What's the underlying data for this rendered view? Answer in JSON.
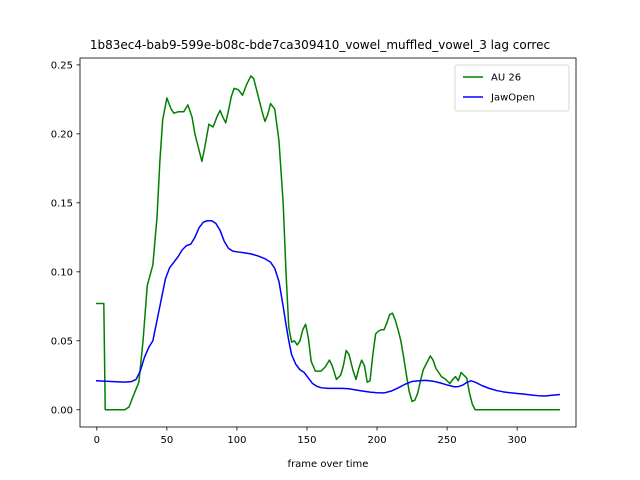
{
  "chart_data": {
    "type": "line",
    "title": "1b83ec4-bab9-599e-b08c-bde7ca309410_vowel_muffled_vowel_3  lag correc",
    "xlabel": "frame over time",
    "ylabel": "",
    "xlim": [
      -12,
      342
    ],
    "ylim": [
      -0.0125,
      0.255
    ],
    "x_ticks": [
      0,
      50,
      100,
      150,
      200,
      250,
      300
    ],
    "y_ticks": [
      0.0,
      0.05,
      0.1,
      0.15,
      0.2,
      0.25
    ],
    "y_tick_labels": [
      "0.00",
      "0.05",
      "0.10",
      "0.15",
      "0.20",
      "0.25"
    ],
    "grid": false,
    "legend": "top-right",
    "series": [
      {
        "name": "AU 26",
        "color": "#008000",
        "points": [
          [
            0,
            0.077
          ],
          [
            5,
            0.077
          ],
          [
            6,
            0.0
          ],
          [
            10,
            0.0
          ],
          [
            20,
            0.0
          ],
          [
            23,
            0.002
          ],
          [
            26,
            0.01
          ],
          [
            30,
            0.02
          ],
          [
            33,
            0.05
          ],
          [
            36,
            0.09
          ],
          [
            40,
            0.105
          ],
          [
            43,
            0.14
          ],
          [
            45,
            0.18
          ],
          [
            47,
            0.21
          ],
          [
            50,
            0.226
          ],
          [
            53,
            0.218
          ],
          [
            55,
            0.215
          ],
          [
            58,
            0.216
          ],
          [
            62,
            0.216
          ],
          [
            65,
            0.221
          ],
          [
            68,
            0.212
          ],
          [
            70,
            0.2
          ],
          [
            73,
            0.188
          ],
          [
            75,
            0.18
          ],
          [
            77,
            0.19
          ],
          [
            80,
            0.207
          ],
          [
            83,
            0.205
          ],
          [
            86,
            0.213
          ],
          [
            88,
            0.217
          ],
          [
            90,
            0.212
          ],
          [
            92,
            0.208
          ],
          [
            94,
            0.217
          ],
          [
            96,
            0.227
          ],
          [
            98,
            0.233
          ],
          [
            101,
            0.232
          ],
          [
            104,
            0.228
          ],
          [
            107,
            0.236
          ],
          [
            110,
            0.242
          ],
          [
            112,
            0.24
          ],
          [
            115,
            0.228
          ],
          [
            118,
            0.216
          ],
          [
            120,
            0.209
          ],
          [
            122,
            0.214
          ],
          [
            124,
            0.222
          ],
          [
            127,
            0.218
          ],
          [
            130,
            0.195
          ],
          [
            133,
            0.15
          ],
          [
            135,
            0.1
          ],
          [
            137,
            0.06
          ],
          [
            139,
            0.049
          ],
          [
            141,
            0.05
          ],
          [
            143,
            0.047
          ],
          [
            145,
            0.05
          ],
          [
            147,
            0.058
          ],
          [
            149,
            0.062
          ],
          [
            151,
            0.052
          ],
          [
            153,
            0.035
          ],
          [
            156,
            0.028
          ],
          [
            160,
            0.028
          ],
          [
            163,
            0.031
          ],
          [
            166,
            0.036
          ],
          [
            168,
            0.032
          ],
          [
            171,
            0.022
          ],
          [
            174,
            0.025
          ],
          [
            176,
            0.032
          ],
          [
            178,
            0.043
          ],
          [
            180,
            0.04
          ],
          [
            183,
            0.028
          ],
          [
            185,
            0.022
          ],
          [
            187,
            0.03
          ],
          [
            189,
            0.036
          ],
          [
            191,
            0.032
          ],
          [
            193,
            0.02
          ],
          [
            195,
            0.021
          ],
          [
            197,
            0.04
          ],
          [
            199,
            0.055
          ],
          [
            201,
            0.057
          ],
          [
            203,
            0.058
          ],
          [
            205,
            0.058
          ],
          [
            207,
            0.063
          ],
          [
            209,
            0.069
          ],
          [
            211,
            0.07
          ],
          [
            213,
            0.065
          ],
          [
            215,
            0.058
          ],
          [
            217,
            0.05
          ],
          [
            219,
            0.038
          ],
          [
            221,
            0.025
          ],
          [
            223,
            0.013
          ],
          [
            225,
            0.006
          ],
          [
            227,
            0.007
          ],
          [
            229,
            0.012
          ],
          [
            231,
            0.021
          ],
          [
            233,
            0.029
          ],
          [
            236,
            0.035
          ],
          [
            238,
            0.039
          ],
          [
            240,
            0.036
          ],
          [
            242,
            0.03
          ],
          [
            244,
            0.027
          ],
          [
            246,
            0.024
          ],
          [
            249,
            0.022
          ],
          [
            252,
            0.019
          ],
          [
            254,
            0.022
          ],
          [
            256,
            0.024
          ],
          [
            258,
            0.021
          ],
          [
            260,
            0.027
          ],
          [
            262,
            0.025
          ],
          [
            264,
            0.023
          ],
          [
            266,
            0.012
          ],
          [
            268,
            0.004
          ],
          [
            270,
            0.0
          ],
          [
            280,
            0.0
          ],
          [
            300,
            0.0
          ],
          [
            330,
            0.0
          ]
        ]
      },
      {
        "name": "JawOpen",
        "color": "#0000ff",
        "points": [
          [
            0,
            0.021
          ],
          [
            10,
            0.0205
          ],
          [
            20,
            0.02
          ],
          [
            25,
            0.0205
          ],
          [
            28,
            0.022
          ],
          [
            31,
            0.028
          ],
          [
            34,
            0.038
          ],
          [
            37,
            0.045
          ],
          [
            40,
            0.05
          ],
          [
            43,
            0.065
          ],
          [
            46,
            0.08
          ],
          [
            49,
            0.095
          ],
          [
            52,
            0.103
          ],
          [
            55,
            0.107
          ],
          [
            58,
            0.111
          ],
          [
            61,
            0.116
          ],
          [
            64,
            0.119
          ],
          [
            67,
            0.12
          ],
          [
            70,
            0.125
          ],
          [
            73,
            0.132
          ],
          [
            76,
            0.136
          ],
          [
            79,
            0.137
          ],
          [
            82,
            0.137
          ],
          [
            85,
            0.135
          ],
          [
            88,
            0.13
          ],
          [
            91,
            0.122
          ],
          [
            94,
            0.117
          ],
          [
            97,
            0.115
          ],
          [
            100,
            0.1145
          ],
          [
            105,
            0.1138
          ],
          [
            110,
            0.113
          ],
          [
            115,
            0.1115
          ],
          [
            120,
            0.1095
          ],
          [
            124,
            0.107
          ],
          [
            127,
            0.1025
          ],
          [
            130,
            0.093
          ],
          [
            133,
            0.075
          ],
          [
            135,
            0.062
          ],
          [
            137,
            0.05
          ],
          [
            139,
            0.04
          ],
          [
            142,
            0.033
          ],
          [
            145,
            0.029
          ],
          [
            148,
            0.027
          ],
          [
            151,
            0.023
          ],
          [
            154,
            0.019
          ],
          [
            157,
            0.017
          ],
          [
            160,
            0.016
          ],
          [
            165,
            0.0155
          ],
          [
            170,
            0.0155
          ],
          [
            175,
            0.0155
          ],
          [
            180,
            0.0152
          ],
          [
            185,
            0.0143
          ],
          [
            190,
            0.0135
          ],
          [
            195,
            0.0128
          ],
          [
            200,
            0.0123
          ],
          [
            205,
            0.0122
          ],
          [
            210,
            0.0135
          ],
          [
            215,
            0.0158
          ],
          [
            220,
            0.0185
          ],
          [
            225,
            0.0205
          ],
          [
            230,
            0.021
          ],
          [
            235,
            0.0213
          ],
          [
            240,
            0.0207
          ],
          [
            245,
            0.0195
          ],
          [
            250,
            0.018
          ],
          [
            255,
            0.0167
          ],
          [
            258,
            0.0168
          ],
          [
            261,
            0.0178
          ],
          [
            264,
            0.0198
          ],
          [
            267,
            0.021
          ],
          [
            270,
            0.02
          ],
          [
            275,
            0.0175
          ],
          [
            280,
            0.0155
          ],
          [
            285,
            0.014
          ],
          [
            290,
            0.013
          ],
          [
            295,
            0.0123
          ],
          [
            300,
            0.0118
          ],
          [
            305,
            0.0113
          ],
          [
            310,
            0.0107
          ],
          [
            315,
            0.0102
          ],
          [
            320,
            0.01
          ],
          [
            325,
            0.0105
          ],
          [
            330,
            0.011
          ]
        ]
      }
    ]
  }
}
